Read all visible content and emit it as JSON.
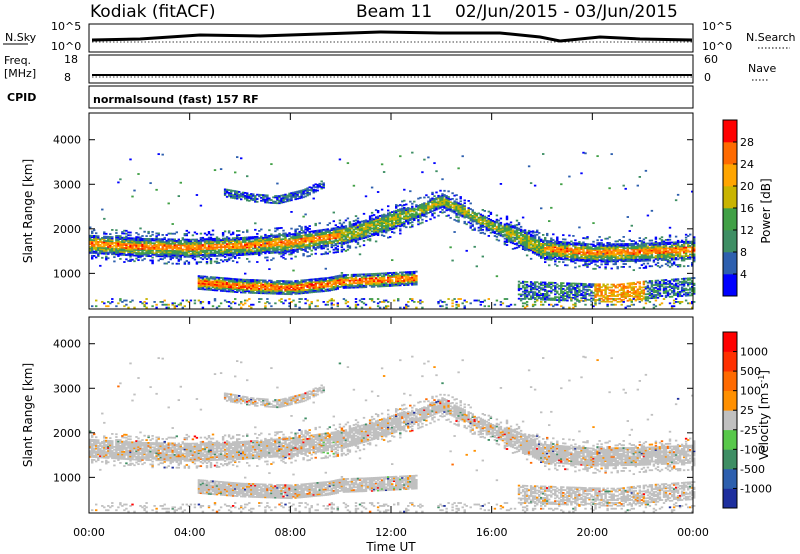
{
  "header": {
    "station": "Kodiak (fitACF)",
    "beam": "Beam 11",
    "date_range": "02/Jun/2015 - 03/Jun/2015"
  },
  "top_panels": {
    "nsky_label": "N.Sky",
    "nsearch_label": "N.Search",
    "nsky_ticks": [
      "10^5",
      "10^0"
    ],
    "nsearch_ticks": [
      "10^5",
      "10^0"
    ],
    "freq_label": "Freq.",
    "freq_unit": "[MHz]",
    "freq_ticks": [
      "18",
      "8"
    ],
    "nave_label": "Nave",
    "nave_ticks": [
      "60",
      "0"
    ],
    "cpid_label": "CPID",
    "cpid_value": "normalsound (fast) 157 RF"
  },
  "chart_data": [
    {
      "type": "heatmap",
      "quantity": "Power",
      "ylabel": "Slant Range [km]",
      "ylim": [
        200,
        4600
      ],
      "yticks": [
        "4000",
        "3000",
        "2000",
        "1000"
      ],
      "xlim": [
        "00:00",
        "24:00"
      ],
      "colorbar": {
        "label": "Power [dB]",
        "ticks": [
          "28",
          "24",
          "20",
          "16",
          "12",
          "8",
          "4"
        ],
        "colors": [
          "#0000ff",
          "#2d5fae",
          "#3e8e64",
          "#41a045",
          "#c9b400",
          "#ffa500",
          "#ff6a00",
          "#ff0000"
        ]
      },
      "bands": [
        {
          "name": "main",
          "t": [
            0,
            2,
            4,
            6,
            8,
            10,
            11,
            12,
            13,
            14,
            15,
            16,
            17,
            18,
            20,
            22,
            24
          ],
          "r": [
            1650,
            1580,
            1560,
            1600,
            1680,
            1840,
            2000,
            2180,
            2380,
            2620,
            2350,
            2050,
            1820,
            1540,
            1450,
            1470,
            1520
          ]
        },
        {
          "name": "lower",
          "t": [
            4.3,
            6,
            8,
            9.5,
            10,
            11,
            12,
            13
          ],
          "r": [
            780,
            700,
            660,
            740,
            800,
            820,
            850,
            880
          ]
        },
        {
          "name": "upper",
          "t": [
            5.3,
            6.5,
            7.5,
            8.5,
            9.3
          ],
          "r": [
            2780,
            2660,
            2620,
            2760,
            2980
          ]
        },
        {
          "name": "ground",
          "t": [
            17,
            18,
            19,
            20,
            21,
            22,
            24
          ],
          "r": [
            620,
            600,
            580,
            560,
            550,
            620,
            700
          ]
        }
      ]
    },
    {
      "type": "heatmap",
      "quantity": "Velocity",
      "ylabel": "Slant Range [km]",
      "ylim": [
        200,
        4600
      ],
      "yticks": [
        "4000",
        "3000",
        "2000",
        "1000"
      ],
      "xlabel": "Time UT",
      "xticks": [
        "00:00",
        "04:00",
        "08:00",
        "12:00",
        "16:00",
        "20:00",
        "00:00"
      ],
      "colorbar": {
        "label": "Velocity [m s",
        "label_exp": "-1",
        "label_close": "]",
        "ticks": [
          "1000",
          "500",
          "100",
          "25",
          "-25",
          "-100",
          "-500",
          "-1000"
        ],
        "colors": [
          "#1e2f9e",
          "#2d5fae",
          "#3e8e64",
          "#58c84a",
          "#c0c0c0",
          "#ff9000",
          "#ff6a00",
          "#ff3000",
          "#ff0000"
        ]
      }
    }
  ]
}
